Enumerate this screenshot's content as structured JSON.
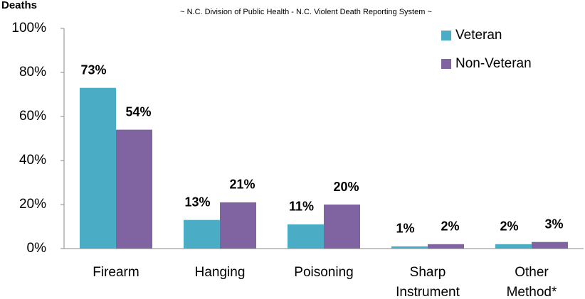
{
  "chart_data": {
    "type": "bar",
    "y_axis_label": "Deaths",
    "subtitle": "~ N.C. Division of Public Health - N.C. Violent Death Reporting System ~",
    "categories": [
      "Firearm",
      "Hanging",
      "Poisoning",
      "Sharp Instrument",
      "Other Method*"
    ],
    "series": [
      {
        "name": "Veteran",
        "color": "#4bacc6",
        "values": [
          73,
          13,
          11,
          1,
          2
        ],
        "value_labels": [
          "73%",
          "13%",
          "11%",
          "1%",
          "2%"
        ]
      },
      {
        "name": "Non-Veteran",
        "color": "#8064a2",
        "values": [
          54,
          21,
          20,
          2,
          3
        ],
        "value_labels": [
          "54%",
          "21%",
          "20%",
          "2%",
          "3%"
        ]
      }
    ],
    "ylim": [
      0,
      100
    ],
    "yticks": [
      {
        "value": 0,
        "label": "0%"
      },
      {
        "value": 20,
        "label": "20%"
      },
      {
        "value": 40,
        "label": "40%"
      },
      {
        "value": 60,
        "label": "60%"
      },
      {
        "value": 80,
        "label": "80%"
      },
      {
        "value": 100,
        "label": "100%"
      }
    ],
    "legend": "top-right"
  }
}
